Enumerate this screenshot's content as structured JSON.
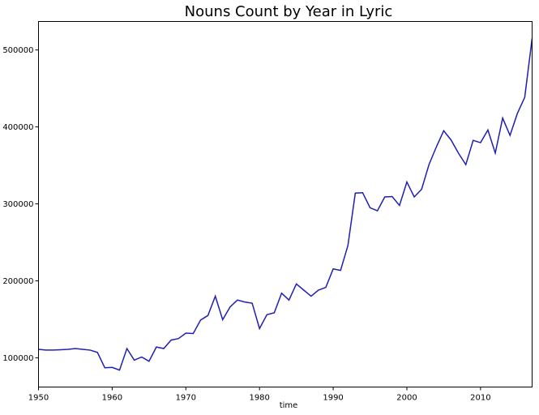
{
  "chart_data": {
    "type": "line",
    "title": "Nouns Count by Year in Lyric",
    "xlabel": "time",
    "ylabel": "",
    "xlim": [
      1950,
      2017
    ],
    "ylim": [
      62000,
      537000
    ],
    "grid": false,
    "x_ticks": [
      1950,
      1960,
      1970,
      1980,
      1990,
      2000,
      2010
    ],
    "x_tick_labels": [
      "1950",
      "1960",
      "1970",
      "1980",
      "1990",
      "2000",
      "2010"
    ],
    "y_ticks": [
      100000,
      200000,
      300000,
      400000,
      500000
    ],
    "y_tick_labels": [
      "100000",
      "200000",
      "300000",
      "400000",
      "500000"
    ],
    "line_color": "#1f1fb4",
    "series": [
      {
        "x": [
          1950,
          1951,
          1952,
          1953,
          1954,
          1955,
          1956,
          1957,
          1958,
          1959,
          1960,
          1961,
          1962,
          1963,
          1964,
          1965,
          1966,
          1967,
          1968,
          1969,
          1970,
          1971,
          1972,
          1973,
          1974,
          1975,
          1976,
          1977,
          1978,
          1979,
          1980,
          1981,
          1982,
          1983,
          1984,
          1985,
          1986,
          1987,
          1988,
          1989,
          1990,
          1991,
          1992,
          1993,
          1994,
          1995,
          1996,
          1997,
          1998,
          1999,
          2000,
          2001,
          2002,
          2003,
          2004,
          2005,
          2006,
          2007,
          2008,
          2009,
          2010,
          2011,
          2012,
          2013,
          2014,
          2015,
          2016,
          2017
        ],
        "values": [
          111000,
          110000,
          110000,
          110500,
          111000,
          112000,
          111000,
          110000,
          107000,
          87000,
          87500,
          84000,
          112000,
          97000,
          101000,
          95500,
          114000,
          112000,
          123000,
          125000,
          132000,
          131500,
          149000,
          155000,
          180000,
          149500,
          166000,
          175000,
          172500,
          171000,
          138000,
          156000,
          158500,
          184000,
          175000,
          196000,
          188000,
          180000,
          188000,
          191500,
          215500,
          213500,
          246000,
          314000,
          314500,
          295000,
          291000,
          309000,
          309500,
          298000,
          328500,
          309000,
          319000,
          351000,
          374000,
          395000,
          383000,
          366000,
          351000,
          382500,
          379500,
          396000,
          366000,
          411500,
          389000,
          417500,
          438500,
          515000
        ]
      }
    ]
  }
}
